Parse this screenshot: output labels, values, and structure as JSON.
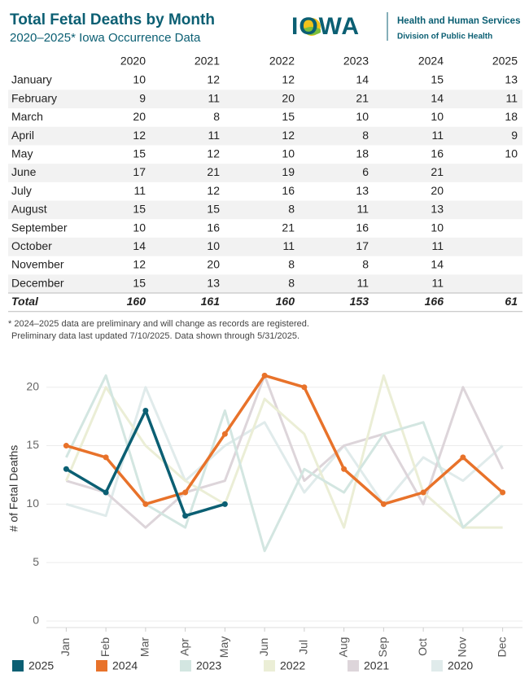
{
  "header": {
    "title": "Total Fetal Deaths by Month",
    "subtitle": "2020–2025* Iowa Occurrence Data",
    "logo": "IOWA",
    "agency": "Health and Human Services",
    "division": "Division of Public Health"
  },
  "table": {
    "months": [
      "January",
      "February",
      "March",
      "April",
      "May",
      "June",
      "July",
      "August",
      "September",
      "October",
      "November",
      "December"
    ],
    "total_label": "Total",
    "totals": [
      160,
      161,
      160,
      153,
      166,
      61
    ]
  },
  "notes": [
    "* 2024–2025 data are preliminary and will change as records are registered.",
    "Preliminary data last updated 7/10/2025. Data shown through 5/31/2025."
  ],
  "chart_data": {
    "type": "line",
    "y_label": "# of Fetal Deaths",
    "categories": [
      "Jan",
      "Feb",
      "Mar",
      "Apr",
      "May",
      "Jun",
      "Jul",
      "Aug",
      "Sep",
      "Oct",
      "Nov",
      "Dec"
    ],
    "ylim": [
      0,
      22
    ],
    "yticks": [
      0,
      5,
      10,
      15,
      20
    ],
    "grid": true,
    "legend": "bottom",
    "series": [
      {
        "name": "2025",
        "color": "#0b5f73",
        "values": [
          13,
          11,
          18,
          9,
          10,
          null,
          null,
          null,
          null,
          null,
          null,
          null
        ]
      },
      {
        "name": "2024",
        "color": "#e8722a",
        "values": [
          15,
          14,
          10,
          11,
          16,
          21,
          20,
          13,
          10,
          11,
          14,
          11
        ]
      },
      {
        "name": "2023",
        "color": "#d3e6e1",
        "values": [
          14,
          21,
          10,
          8,
          18,
          6,
          13,
          11,
          16,
          17,
          8,
          11
        ]
      },
      {
        "name": "2022",
        "color": "#ebeed6",
        "values": [
          12,
          20,
          15,
          12,
          10,
          19,
          16,
          8,
          21,
          11,
          8,
          8
        ]
      },
      {
        "name": "2021",
        "color": "#ddd5da",
        "values": [
          12,
          11,
          8,
          11,
          12,
          21,
          12,
          15,
          16,
          10,
          20,
          13
        ]
      },
      {
        "name": "2020",
        "color": "#e0ebeb",
        "values": [
          10,
          9,
          20,
          12,
          15,
          17,
          11,
          15,
          10,
          14,
          12,
          15
        ]
      }
    ]
  }
}
